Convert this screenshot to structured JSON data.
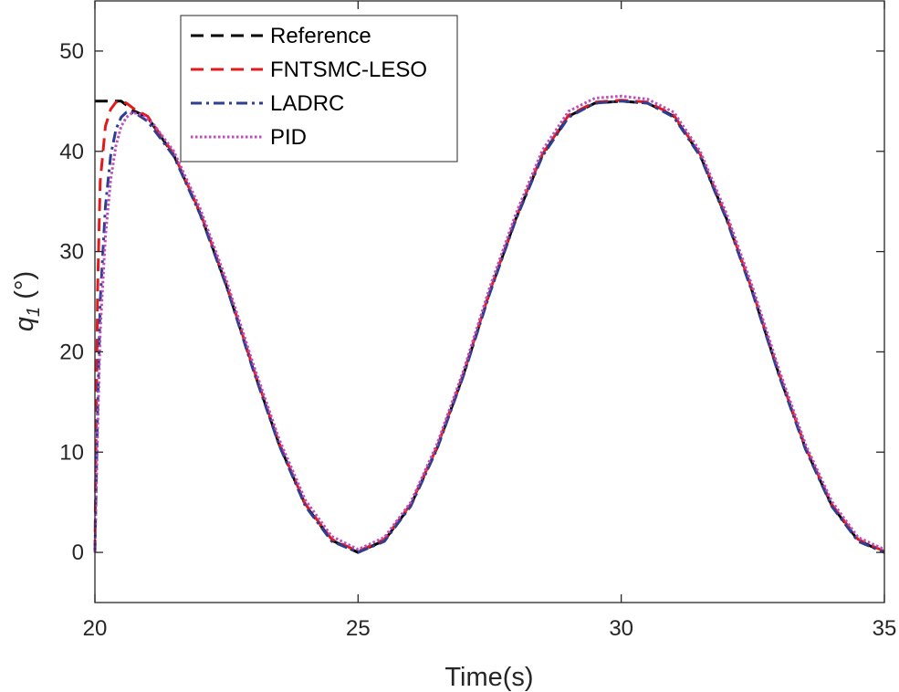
{
  "chart_data": {
    "type": "line",
    "xlabel": "Time(s)",
    "ylabel_main": "q",
    "ylabel_sub": "1",
    "ylabel_unit": " (°)",
    "xlim": [
      20,
      35
    ],
    "ylim": [
      -5,
      55
    ],
    "xticks": [
      20,
      25,
      30,
      35
    ],
    "yticks": [
      0,
      10,
      20,
      30,
      40,
      50
    ],
    "xtick_labels": [
      "20",
      "25",
      "30",
      "35"
    ],
    "ytick_labels": [
      "0",
      "10",
      "20",
      "30",
      "40",
      "50"
    ],
    "grid": false,
    "legend_position": "top-left",
    "series": [
      {
        "name": "Reference",
        "color": "#000000",
        "style": "dashed",
        "x": [
          20,
          20.5,
          20.75,
          21,
          21.5,
          22,
          22.5,
          23,
          23.5,
          24,
          24.5,
          25,
          25.5,
          26,
          26.5,
          27,
          27.5,
          28,
          28.5,
          29,
          29.5,
          30,
          30.5,
          31,
          31.5,
          32,
          32.5,
          33,
          33.5,
          34,
          34.5,
          35
        ],
        "y": [
          45,
          45,
          44.0,
          43.4,
          39.6,
          33.8,
          26.6,
          18.4,
          10.8,
          4.7,
          1.2,
          0,
          1.2,
          4.7,
          10.4,
          17.7,
          25.9,
          33.3,
          39.6,
          43.5,
          44.8,
          45,
          44.8,
          43.5,
          39.6,
          33.3,
          25.9,
          17.7,
          10.4,
          4.7,
          1.2,
          0
        ]
      },
      {
        "name": "FNTSMC-LESO",
        "color": "#e31a1c",
        "style": "dashed",
        "x": [
          20,
          20.05,
          20.1,
          20.2,
          20.3,
          20.4,
          20.5,
          20.6,
          20.75,
          21,
          21.5,
          22,
          22.5,
          23,
          23.5,
          24,
          24.5,
          25,
          25.5,
          26,
          26.5,
          27,
          27.5,
          28,
          28.5,
          29,
          29.5,
          30,
          30.5,
          31,
          31.5,
          32,
          32.5,
          33,
          33.5,
          34,
          34.5,
          35
        ],
        "y": [
          0,
          26,
          37,
          42.5,
          44.2,
          44.9,
          45.0,
          44.8,
          44.2,
          43.5,
          39.7,
          33.9,
          26.7,
          18.5,
          10.9,
          4.8,
          1.3,
          0.1,
          1.3,
          4.8,
          10.5,
          17.8,
          26.0,
          33.4,
          39.7,
          43.6,
          44.9,
          45.1,
          44.9,
          43.6,
          39.7,
          33.4,
          26.0,
          17.8,
          10.5,
          4.8,
          1.3,
          0.1
        ]
      },
      {
        "name": "LADRC",
        "color": "#2e3f8f",
        "style": "dashdot",
        "x": [
          20,
          20.05,
          20.1,
          20.2,
          20.3,
          20.4,
          20.5,
          20.6,
          20.7,
          20.8,
          21,
          21.5,
          22,
          22.5,
          23,
          23.5,
          24,
          24.5,
          25,
          25.5,
          26,
          26.5,
          27,
          27.5,
          28,
          28.5,
          29,
          29.5,
          30,
          30.5,
          31,
          31.5,
          32,
          32.5,
          33,
          33.5,
          34,
          34.5,
          35
        ],
        "y": [
          0,
          14,
          25,
          34.5,
          39.6,
          42.2,
          43.4,
          43.9,
          43.9,
          43.7,
          43.0,
          39.5,
          33.7,
          26.5,
          18.3,
          10.7,
          4.6,
          1.1,
          0,
          1.1,
          4.6,
          10.3,
          17.6,
          25.8,
          33.2,
          39.5,
          43.4,
          44.8,
          45.0,
          44.8,
          43.4,
          39.5,
          33.2,
          25.8,
          17.6,
          10.3,
          4.6,
          1.1,
          0
        ]
      },
      {
        "name": "PID",
        "color": "#c04bbf",
        "style": "dotted",
        "x": [
          20,
          20.05,
          20.1,
          20.2,
          20.3,
          20.4,
          20.5,
          20.6,
          20.7,
          20.8,
          20.9,
          21.1,
          21.5,
          22,
          22.5,
          23,
          23.5,
          24,
          24.5,
          25,
          25.5,
          26,
          26.5,
          27,
          27.5,
          28,
          28.5,
          29,
          29.5,
          30,
          30.5,
          31,
          31.5,
          32,
          32.5,
          33,
          33.5,
          34,
          34.5,
          35
        ],
        "y": [
          0,
          12,
          22,
          31.5,
          37.2,
          40.6,
          42.5,
          43.4,
          43.8,
          43.8,
          43.6,
          42.8,
          40.0,
          34.3,
          27.1,
          18.9,
          11.3,
          5.2,
          1.6,
          0.3,
          1.5,
          5.0,
          10.8,
          18.1,
          26.4,
          33.8,
          40.1,
          44.0,
          45.3,
          45.5,
          45.2,
          43.9,
          40.0,
          33.8,
          26.4,
          18.2,
          10.8,
          5.1,
          1.5,
          0.3
        ]
      }
    ]
  }
}
